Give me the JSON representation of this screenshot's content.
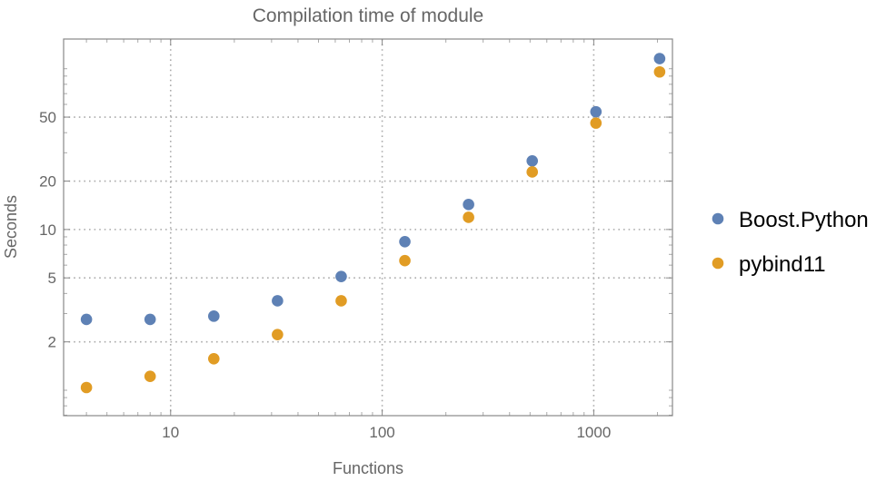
{
  "chart_data": {
    "type": "scatter",
    "title": "Compilation time of module",
    "xlabel": "Functions",
    "ylabel": "Seconds",
    "x_scale": "log",
    "y_scale": "log",
    "xlim": [
      3.12,
      2355
    ],
    "ylim": [
      0.695,
      153
    ],
    "x_ticks": [
      10,
      100,
      1000
    ],
    "x_tick_labels": [
      "10",
      "100",
      "1000"
    ],
    "y_ticks": [
      2,
      5,
      10,
      20,
      50
    ],
    "y_tick_labels": [
      "2",
      "5",
      "10",
      "20",
      "50"
    ],
    "grid": true,
    "legend_placement": "right",
    "x": [
      4,
      8,
      16,
      32,
      64,
      128,
      256,
      512,
      1024,
      2048
    ],
    "series": [
      {
        "name": "Boost.Python",
        "color": "#5e81b5",
        "values": [
          2.76,
          2.76,
          2.89,
          3.6,
          5.1,
          8.4,
          14.3,
          26.7,
          54,
          115.6
        ]
      },
      {
        "name": "pybind11",
        "color": "#e19c24",
        "values": [
          1.04,
          1.22,
          1.57,
          2.22,
          3.6,
          6.4,
          11.9,
          22.8,
          45.9,
          95.5
        ]
      }
    ]
  }
}
